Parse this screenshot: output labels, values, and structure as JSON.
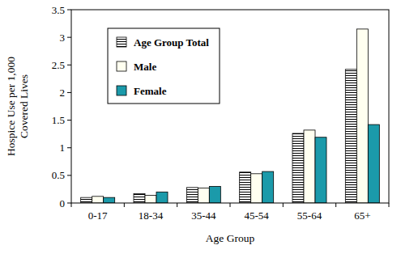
{
  "chart_data": {
    "type": "bar",
    "x_label": "Age Group",
    "y_label": [
      "Hospice Use per 1,000",
      "Covered Lives"
    ],
    "categories": [
      "0-17",
      "18-34",
      "35-44",
      "45-54",
      "55-64",
      "65+"
    ],
    "series": [
      {
        "name": "Age Group Total",
        "color": "#000000",
        "values": [
          0.1,
          0.17,
          0.28,
          0.56,
          1.26,
          2.42
        ]
      },
      {
        "name": "Male",
        "color": "#fffff0",
        "values": [
          0.12,
          0.14,
          0.27,
          0.53,
          1.32,
          3.15
        ]
      },
      {
        "name": "Female",
        "color": "#1b9aaa",
        "values": [
          0.1,
          0.2,
          0.3,
          0.57,
          1.19,
          1.42
        ]
      }
    ],
    "ylim": [
      0,
      3.5
    ],
    "yticks": [
      0,
      0.5,
      1,
      1.5,
      2,
      2.5,
      3,
      3.5
    ],
    "grid": false,
    "legend": "top-left"
  }
}
